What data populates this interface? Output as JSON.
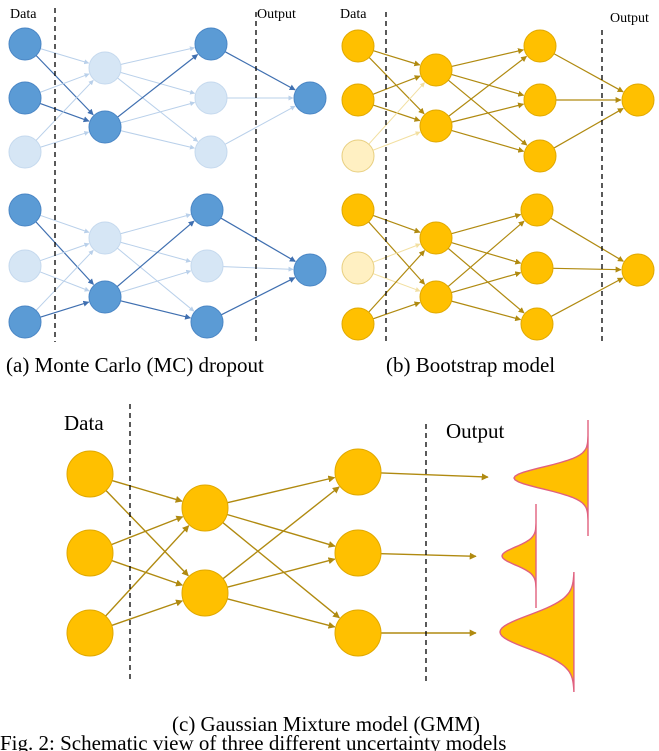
{
  "panel_a": {
    "data_label": "Data",
    "output_label": "Output",
    "caption": "(a) Monte Carlo (MC) dropout"
  },
  "panel_b": {
    "data_label": "Data",
    "output_label": "Output",
    "caption": "(b) Bootstrap model"
  },
  "panel_c": {
    "data_label": "Data",
    "output_label": "Output",
    "caption": "(c) Gaussian Mixture model (GMM)"
  },
  "figure_caption": "Fig. 2: Schematic view of three different uncertainty models",
  "colors": {
    "mc_active": "#5B9BD5",
    "mc_dropped": "#D6E6F5",
    "mc_edge": "#3F6FB0",
    "boot_node": "#FFC000",
    "boot_dropped": "#FFF0C2",
    "boot_edge": "#B08A10",
    "gmm_fill": "#FFC000",
    "gmm_stroke": "#E0607E"
  }
}
